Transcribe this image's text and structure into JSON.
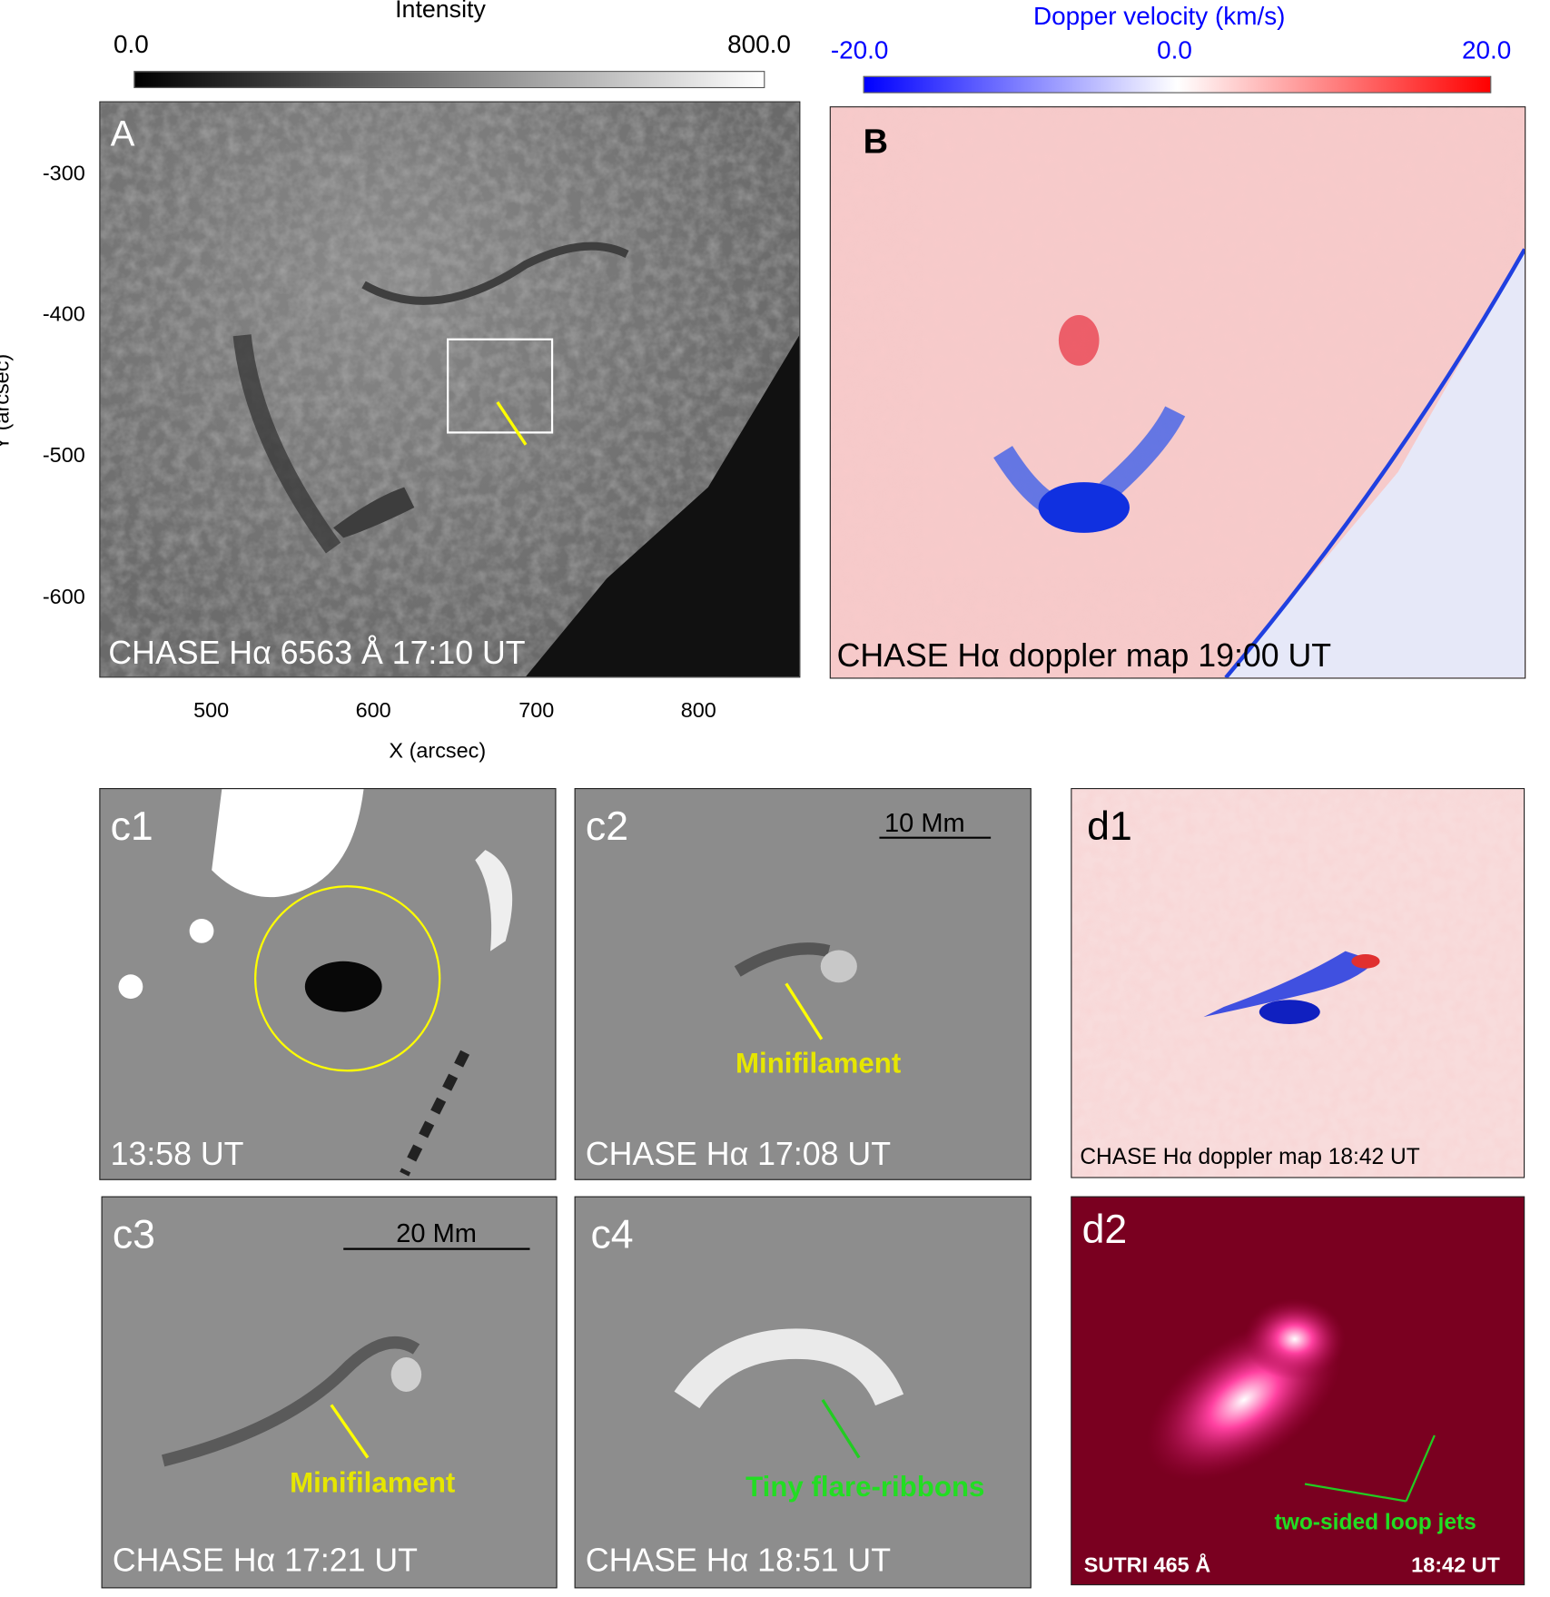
{
  "colorbar_intensity": {
    "title": "Intensity",
    "min_label": "0.0",
    "max_label": "800.0"
  },
  "colorbar_doppler": {
    "title": "Dopper velocity (km/s)",
    "min_label": "-20.0",
    "mid_label": "0.0",
    "max_label": "20.0",
    "colors": {
      "negative": "#0000ff",
      "positive": "#ff0000"
    }
  },
  "panel_a": {
    "label": "A",
    "caption": "CHASE Hα 6563 Å 17:10 UT",
    "x_axis": {
      "label": "X (arcsec)",
      "ticks": [
        "500",
        "600",
        "700",
        "800"
      ]
    },
    "y_axis": {
      "label": "Y (arcsec)",
      "ticks": [
        "-300",
        "-400",
        "-500",
        "-600"
      ]
    },
    "arrow_color": "#ffff00"
  },
  "panel_b": {
    "label": "B",
    "caption": "CHASE Hα doppler map 19:00 UT"
  },
  "panel_c1": {
    "label": "c1",
    "caption": "13:58 UT",
    "circle_color": "#ffff00"
  },
  "panel_c2": {
    "label": "c2",
    "caption": "CHASE Hα 17:08 UT",
    "scale_bar": "10 Mm",
    "annotation": "Minifilament"
  },
  "panel_c3": {
    "label": "c3",
    "caption": "CHASE Hα 17:21 UT",
    "scale_bar": "20 Mm",
    "annotation": "Minifilament"
  },
  "panel_c4": {
    "label": "c4",
    "caption": "CHASE Hα 18:51 UT",
    "annotation": "Tiny flare-ribbons"
  },
  "panel_d1": {
    "label": "d1",
    "caption": "CHASE Hα doppler map 18:42 UT"
  },
  "panel_d2": {
    "label": "d2",
    "caption_left": "SUTRI 465 Å",
    "caption_right": "18:42 UT",
    "annotation": "two-sided loop jets"
  }
}
